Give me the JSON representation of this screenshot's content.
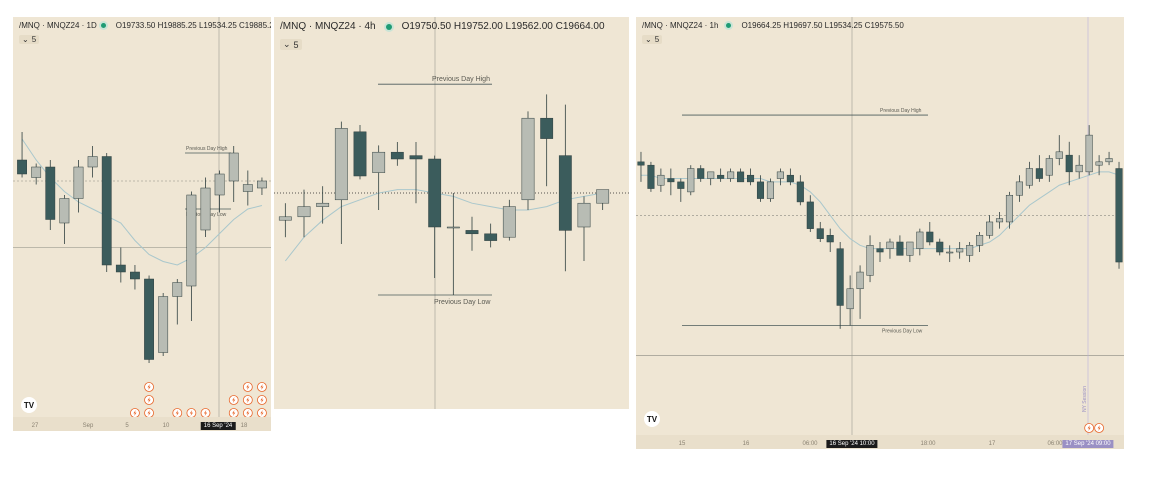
{
  "panels": [
    {
      "id": "daily",
      "symbol": "/MNQ · MNQZ24 · 1D",
      "ohlc": "O19733.50 H19885.25 L19534.25 C19885.25",
      "interval_menu": "5",
      "price_labels": [
        "Previous Day High",
        "Previous Day Low"
      ],
      "x_ticks": [
        "27",
        "Sep",
        "5",
        "10",
        "16 Sep '24",
        "18"
      ],
      "x_selected": "16 Sep '24",
      "logo": "TV",
      "event_icon": "lightning-icon"
    },
    {
      "id": "four-hour",
      "symbol": "/MNQ · MNQZ24 · 4h",
      "ohlc": "O19750.50 H19752.00 L19562.00 C19664.00",
      "interval_menu": "5",
      "price_labels": [
        "Previous Day High",
        "Previous Day Low"
      ]
    },
    {
      "id": "hourly",
      "symbol": "/MNQ · MNQZ24 · 1h",
      "ohlc": "O19664.25 H19697.50 L19534.25 C19575.50",
      "interval_menu": "5",
      "price_labels": [
        "Previous Day High",
        "Previous Day Low"
      ],
      "x_ticks": [
        "15",
        "16",
        "06:00",
        "16 Sep '24  10:00",
        "18:00",
        "17",
        "06:00",
        "17 Sep '24  09:00"
      ],
      "x_selected": [
        "16 Sep '24  10:00",
        "17 Sep '24  09:00"
      ],
      "vertical_label": "NY Session",
      "logo": "TV",
      "event_icon": "lightning-icon"
    }
  ],
  "colors": {
    "background": "#efe6d4",
    "bull_candle": "#b8bcb4",
    "bear_candle": "#3b5c5c",
    "wick": "#2f3f3f",
    "moving_average": "#a9c7cc",
    "levels": "#4a5a5a",
    "event_orange": "#e8662a"
  },
  "chart_data": [
    {
      "type": "candlestick",
      "title": "/MNQ · MNQZ24 · 1D",
      "ylim": [
        0,
        100
      ],
      "candles": [
        {
          "o": 72,
          "h": 80,
          "l": 67,
          "c": 68
        },
        {
          "o": 67,
          "h": 71,
          "l": 65,
          "c": 70
        },
        {
          "o": 70,
          "h": 72,
          "l": 52,
          "c": 55
        },
        {
          "o": 54,
          "h": 62,
          "l": 48,
          "c": 61
        },
        {
          "o": 61,
          "h": 72,
          "l": 57,
          "c": 70
        },
        {
          "o": 70,
          "h": 76,
          "l": 67,
          "c": 73
        },
        {
          "o": 73,
          "h": 74,
          "l": 40,
          "c": 42
        },
        {
          "o": 42,
          "h": 47,
          "l": 37,
          "c": 40
        },
        {
          "o": 40,
          "h": 42,
          "l": 35,
          "c": 38
        },
        {
          "o": 38,
          "h": 39,
          "l": 14,
          "c": 15
        },
        {
          "o": 17,
          "h": 34,
          "l": 16,
          "c": 33
        },
        {
          "o": 33,
          "h": 38,
          "l": 25,
          "c": 37
        },
        {
          "o": 36,
          "h": 63,
          "l": 26,
          "c": 62
        },
        {
          "o": 52,
          "h": 67,
          "l": 50,
          "c": 64
        },
        {
          "o": 62,
          "h": 69,
          "l": 57,
          "c": 68
        },
        {
          "o": 66,
          "h": 76,
          "l": 60,
          "c": 74
        },
        {
          "o": 63,
          "h": 69,
          "l": 59,
          "c": 65
        },
        {
          "o": 64,
          "h": 67,
          "l": 62,
          "c": 66
        }
      ],
      "ma": [
        78,
        72,
        67,
        63,
        60,
        58,
        56,
        54,
        49,
        45,
        43,
        42,
        44,
        47,
        51,
        55,
        58,
        59
      ],
      "levels": {
        "previous_day_high": 74,
        "previous_day_low": 58,
        "h_line_upper": 66,
        "h_line_lower": 47
      },
      "events": [
        [
          0,
          0,
          0,
          0,
          0,
          0,
          0,
          0,
          1,
          3,
          0,
          1,
          1,
          1,
          0,
          2,
          3,
          3
        ]
      ]
    },
    {
      "type": "candlestick",
      "title": "/MNQ · MNQZ24 · 4h",
      "ylim": [
        0,
        100
      ],
      "candles": [
        {
          "o": 52,
          "h": 57,
          "l": 47,
          "c": 53
        },
        {
          "o": 53,
          "h": 61,
          "l": 47,
          "c": 56
        },
        {
          "o": 56,
          "h": 62,
          "l": 51,
          "c": 57
        },
        {
          "o": 58,
          "h": 81,
          "l": 45,
          "c": 79
        },
        {
          "o": 78,
          "h": 80,
          "l": 64,
          "c": 65
        },
        {
          "o": 66,
          "h": 74,
          "l": 55,
          "c": 72
        },
        {
          "o": 72,
          "h": 75,
          "l": 68,
          "c": 70
        },
        {
          "o": 71,
          "h": 75,
          "l": 57,
          "c": 70
        },
        {
          "o": 70,
          "h": 71,
          "l": 35,
          "c": 50
        },
        {
          "o": 50,
          "h": 60,
          "l": 30,
          "c": 50
        },
        {
          "o": 49,
          "h": 53,
          "l": 43,
          "c": 48
        },
        {
          "o": 48,
          "h": 51,
          "l": 44,
          "c": 46
        },
        {
          "o": 47,
          "h": 58,
          "l": 46,
          "c": 56
        },
        {
          "o": 58,
          "h": 84,
          "l": 55,
          "c": 82
        },
        {
          "o": 82,
          "h": 89,
          "l": 62,
          "c": 76
        },
        {
          "o": 71,
          "h": 86,
          "l": 37,
          "c": 49
        },
        {
          "o": 50,
          "h": 59,
          "l": 40,
          "c": 57
        },
        {
          "o": 57,
          "h": 60,
          "l": 55,
          "c": 61
        }
      ],
      "ma": [
        40,
        47,
        52,
        56,
        58,
        60,
        61,
        61,
        60,
        59,
        57,
        56,
        55,
        55,
        56,
        58,
        59,
        60
      ],
      "levels": {
        "previous_day_high": 92,
        "previous_day_low": 30,
        "dotted_line": 60
      }
    },
    {
      "type": "candlestick",
      "title": "/MNQ · MNQZ24 · 1h",
      "ylim": [
        0,
        100
      ],
      "candles": [
        {
          "o": 74,
          "h": 77,
          "l": 68,
          "c": 73
        },
        {
          "o": 73,
          "h": 74,
          "l": 65,
          "c": 66
        },
        {
          "o": 67,
          "h": 72,
          "l": 65,
          "c": 70
        },
        {
          "o": 69,
          "h": 72,
          "l": 64,
          "c": 68
        },
        {
          "o": 68,
          "h": 69,
          "l": 62,
          "c": 66
        },
        {
          "o": 65,
          "h": 73,
          "l": 64,
          "c": 72
        },
        {
          "o": 72,
          "h": 73,
          "l": 68,
          "c": 69
        },
        {
          "o": 69,
          "h": 71,
          "l": 67,
          "c": 71
        },
        {
          "o": 70,
          "h": 72,
          "l": 68,
          "c": 69
        },
        {
          "o": 69,
          "h": 72,
          "l": 68,
          "c": 71
        },
        {
          "o": 71,
          "h": 72,
          "l": 68,
          "c": 68
        },
        {
          "o": 70,
          "h": 72,
          "l": 67,
          "c": 68
        },
        {
          "o": 68,
          "h": 70,
          "l": 62,
          "c": 63
        },
        {
          "o": 63,
          "h": 69,
          "l": 62,
          "c": 68
        },
        {
          "o": 69,
          "h": 72,
          "l": 67,
          "c": 71
        },
        {
          "o": 70,
          "h": 72,
          "l": 67,
          "c": 68
        },
        {
          "o": 68,
          "h": 70,
          "l": 61,
          "c": 62
        },
        {
          "o": 62,
          "h": 64,
          "l": 53,
          "c": 54
        },
        {
          "o": 54,
          "h": 56,
          "l": 50,
          "c": 51
        },
        {
          "o": 52,
          "h": 54,
          "l": 47,
          "c": 50
        },
        {
          "o": 48,
          "h": 50,
          "l": 24,
          "c": 31
        },
        {
          "o": 30,
          "h": 40,
          "l": 25,
          "c": 36
        },
        {
          "o": 36,
          "h": 43,
          "l": 27,
          "c": 41
        },
        {
          "o": 40,
          "h": 52,
          "l": 38,
          "c": 49
        },
        {
          "o": 48,
          "h": 50,
          "l": 44,
          "c": 47
        },
        {
          "o": 48,
          "h": 51,
          "l": 45,
          "c": 50
        },
        {
          "o": 50,
          "h": 52,
          "l": 46,
          "c": 46
        },
        {
          "o": 46,
          "h": 50,
          "l": 44,
          "c": 50
        },
        {
          "o": 48,
          "h": 54,
          "l": 46,
          "c": 53
        },
        {
          "o": 53,
          "h": 56,
          "l": 49,
          "c": 50
        },
        {
          "o": 50,
          "h": 51,
          "l": 46,
          "c": 47
        },
        {
          "o": 47,
          "h": 49,
          "l": 44,
          "c": 47
        },
        {
          "o": 47,
          "h": 50,
          "l": 45,
          "c": 48
        },
        {
          "o": 46,
          "h": 50,
          "l": 44,
          "c": 49
        },
        {
          "o": 49,
          "h": 53,
          "l": 47,
          "c": 52
        },
        {
          "o": 52,
          "h": 58,
          "l": 51,
          "c": 56
        },
        {
          "o": 56,
          "h": 59,
          "l": 54,
          "c": 57
        },
        {
          "o": 56,
          "h": 65,
          "l": 54,
          "c": 64
        },
        {
          "o": 64,
          "h": 70,
          "l": 62,
          "c": 68
        },
        {
          "o": 67,
          "h": 74,
          "l": 66,
          "c": 72
        },
        {
          "o": 72,
          "h": 76,
          "l": 68,
          "c": 69
        },
        {
          "o": 70,
          "h": 76,
          "l": 68,
          "c": 75
        },
        {
          "o": 75,
          "h": 82,
          "l": 73,
          "c": 77
        },
        {
          "o": 76,
          "h": 80,
          "l": 67,
          "c": 71
        },
        {
          "o": 71,
          "h": 76,
          "l": 69,
          "c": 73
        },
        {
          "o": 71,
          "h": 85,
          "l": 70,
          "c": 82
        },
        {
          "o": 73,
          "h": 76,
          "l": 70,
          "c": 74
        },
        {
          "o": 74,
          "h": 77,
          "l": 73,
          "c": 75
        },
        {
          "o": 72,
          "h": 74,
          "l": 42,
          "c": 44
        }
      ],
      "ma": [
        70,
        70,
        69,
        69,
        69,
        69,
        69,
        69,
        69,
        69,
        69,
        69,
        69,
        68,
        68,
        68,
        67,
        65,
        62,
        58,
        54,
        51,
        49,
        48,
        48,
        48,
        48,
        48,
        48,
        48,
        48,
        48,
        48,
        48,
        49,
        50,
        52,
        55,
        58,
        61,
        63,
        65,
        67,
        68,
        69,
        70,
        71,
        71,
        70
      ],
      "levels": {
        "previous_day_high": 88,
        "previous_day_low": 25,
        "h_line_upper": 58,
        "h_line_lower": 16
      },
      "events": [
        [
          0,
          0,
          0,
          0,
          0,
          0,
          0,
          0,
          0,
          0,
          0,
          0,
          0,
          0,
          0,
          0,
          0,
          0,
          0,
          0,
          0,
          0,
          0,
          0,
          0,
          0,
          0,
          0,
          0,
          0,
          0,
          0,
          0,
          0,
          0,
          0,
          0,
          0,
          0,
          0,
          0,
          0,
          0,
          0,
          0,
          1,
          1,
          0,
          0
        ]
      ]
    }
  ]
}
